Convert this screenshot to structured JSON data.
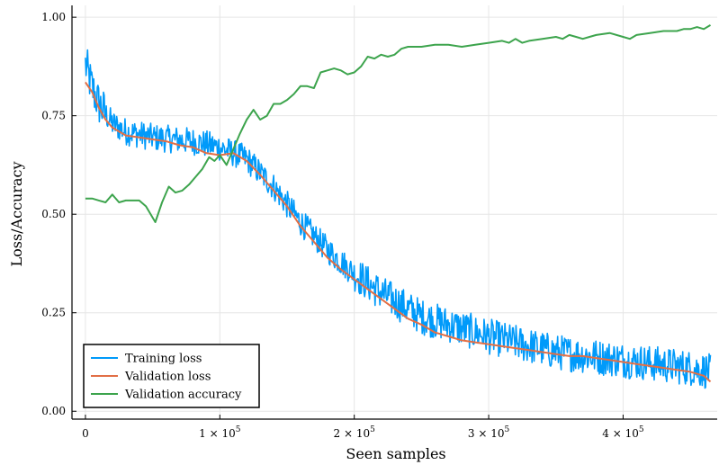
{
  "chart_data": {
    "type": "line",
    "xlabel": "Seen samples",
    "ylabel": "Loss/Accuracy",
    "xlim": [
      -10000,
      470000
    ],
    "ylim": [
      -0.02,
      1.03
    ],
    "xticks": [
      {
        "value": 0,
        "mantissa": "0",
        "sci": false
      },
      {
        "value": 100000,
        "mantissa": "1",
        "sci": true
      },
      {
        "value": 200000,
        "mantissa": "2",
        "sci": true
      },
      {
        "value": 300000,
        "mantissa": "3",
        "sci": true
      },
      {
        "value": 400000,
        "mantissa": "4",
        "sci": true
      }
    ],
    "xtick_base": "× 10",
    "xtick_exp": "5",
    "yticks": [
      0.0,
      0.25,
      0.5,
      0.75,
      1.0
    ],
    "ytick_labels": [
      "0.00",
      "0.25",
      "0.50",
      "0.75",
      "1.00"
    ],
    "grid": true,
    "legend_position": "bottom-left",
    "series": [
      {
        "name": "Training loss",
        "color": "#009AFA",
        "style": "noisy",
        "noise_amplitude": 0.035,
        "anchors": {
          "x": [
            0,
            5000,
            10000,
            20000,
            30000,
            50000,
            80000,
            100000,
            120000,
            140000,
            160000,
            180000,
            200000,
            220000,
            250000,
            300000,
            350000,
            400000,
            450000,
            465000
          ],
          "y": [
            0.88,
            0.82,
            0.78,
            0.73,
            0.71,
            0.695,
            0.685,
            0.67,
            0.64,
            0.57,
            0.48,
            0.41,
            0.35,
            0.3,
            0.24,
            0.19,
            0.15,
            0.13,
            0.11,
            0.1
          ]
        }
      },
      {
        "name": "Validation loss",
        "color": "#E26F46",
        "style": "line",
        "x": [
          0,
          5000,
          10000,
          15000,
          20000,
          25000,
          30000,
          40000,
          50000,
          60000,
          70000,
          80000,
          90000,
          100000,
          110000,
          120000,
          130000,
          140000,
          150000,
          160000,
          170000,
          180000,
          190000,
          200000,
          210000,
          220000,
          230000,
          240000,
          250000,
          260000,
          270000,
          280000,
          290000,
          300000,
          310000,
          320000,
          330000,
          340000,
          350000,
          360000,
          370000,
          380000,
          390000,
          400000,
          410000,
          420000,
          430000,
          440000,
          450000,
          460000,
          465000
        ],
        "y": [
          0.835,
          0.81,
          0.77,
          0.74,
          0.72,
          0.71,
          0.7,
          0.695,
          0.69,
          0.685,
          0.675,
          0.67,
          0.655,
          0.65,
          0.655,
          0.635,
          0.6,
          0.56,
          0.52,
          0.47,
          0.43,
          0.39,
          0.36,
          0.335,
          0.31,
          0.285,
          0.26,
          0.235,
          0.22,
          0.2,
          0.19,
          0.18,
          0.175,
          0.17,
          0.165,
          0.16,
          0.155,
          0.15,
          0.145,
          0.14,
          0.14,
          0.135,
          0.13,
          0.125,
          0.12,
          0.115,
          0.11,
          0.105,
          0.1,
          0.09,
          0.075
        ]
      },
      {
        "name": "Validation accuracy",
        "color": "#3DA44D",
        "style": "line",
        "x": [
          0,
          5000,
          10000,
          15000,
          20000,
          25000,
          30000,
          40000,
          45000,
          52000,
          57000,
          62000,
          67000,
          72000,
          77000,
          82000,
          87000,
          92000,
          96000,
          100000,
          105000,
          110000,
          115000,
          120000,
          125000,
          130000,
          135000,
          140000,
          145000,
          150000,
          155000,
          160000,
          165000,
          170000,
          175000,
          180000,
          185000,
          190000,
          195000,
          200000,
          205000,
          210000,
          215000,
          220000,
          225000,
          230000,
          235000,
          240000,
          250000,
          260000,
          270000,
          280000,
          290000,
          300000,
          310000,
          315000,
          320000,
          325000,
          330000,
          340000,
          350000,
          355000,
          360000,
          365000,
          370000,
          375000,
          380000,
          390000,
          400000,
          405000,
          410000,
          420000,
          430000,
          440000,
          445000,
          450000,
          455000,
          460000,
          465000
        ],
        "y": [
          0.54,
          0.54,
          0.535,
          0.53,
          0.55,
          0.53,
          0.535,
          0.535,
          0.52,
          0.48,
          0.53,
          0.57,
          0.555,
          0.56,
          0.575,
          0.595,
          0.615,
          0.645,
          0.635,
          0.65,
          0.625,
          0.665,
          0.705,
          0.74,
          0.765,
          0.74,
          0.75,
          0.78,
          0.78,
          0.79,
          0.805,
          0.825,
          0.825,
          0.82,
          0.86,
          0.865,
          0.87,
          0.865,
          0.855,
          0.86,
          0.875,
          0.9,
          0.895,
          0.905,
          0.9,
          0.905,
          0.92,
          0.925,
          0.925,
          0.93,
          0.93,
          0.925,
          0.93,
          0.935,
          0.94,
          0.935,
          0.945,
          0.935,
          0.94,
          0.945,
          0.95,
          0.945,
          0.955,
          0.95,
          0.945,
          0.95,
          0.955,
          0.96,
          0.95,
          0.945,
          0.955,
          0.96,
          0.965,
          0.965,
          0.97,
          0.97,
          0.975,
          0.97,
          0.98
        ]
      }
    ]
  }
}
